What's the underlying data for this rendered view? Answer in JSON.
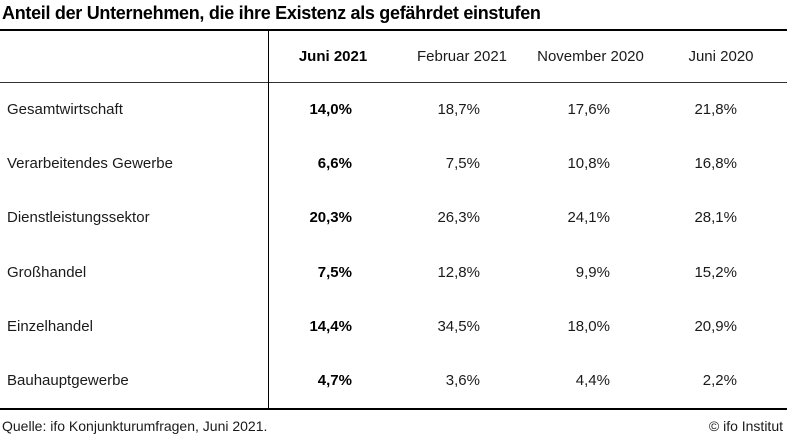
{
  "title": "Anteil der Unternehmen, die ihre Existenz als gefährdet einstufen",
  "table": {
    "columns": [
      "Juni 2021",
      "Februar 2021",
      "November 2020",
      "Juni 2020"
    ],
    "highlighted_column": "Juni 2021",
    "rows": [
      {
        "label": "Gesamtwirtschaft",
        "values": [
          "14,0%",
          "18,7%",
          "17,6%",
          "21,8%"
        ]
      },
      {
        "label": "Verarbeitendes Gewerbe",
        "values": [
          "6,6%",
          "7,5%",
          "10,8%",
          "16,8%"
        ]
      },
      {
        "label": "Dienstleistungssektor",
        "values": [
          "20,3%",
          "26,3%",
          "24,1%",
          "28,1%"
        ]
      },
      {
        "label": "Großhandel",
        "values": [
          "7,5%",
          "12,8%",
          "9,9%",
          "15,2%"
        ]
      },
      {
        "label": "Einzelhandel",
        "values": [
          "14,4%",
          "34,5%",
          "18,0%",
          "20,9%"
        ]
      },
      {
        "label": "Bauhauptgewerbe",
        "values": [
          "4,7%",
          "3,6%",
          "4,4%",
          "2,2%"
        ]
      }
    ]
  },
  "footer": {
    "source": "Quelle: ifo Konjunkturumfragen, Juni 2021.",
    "copyright": "© ifo Institut"
  },
  "colors": {
    "text": "#1a1a1a",
    "rule": "#000000",
    "background": "#ffffff"
  },
  "chart_data": {
    "type": "table",
    "title": "Anteil der Unternehmen, die ihre Existenz als gefährdet einstufen",
    "categories": [
      "Gesamtwirtschaft",
      "Verarbeitendes Gewerbe",
      "Dienstleistungssektor",
      "Großhandel",
      "Einzelhandel",
      "Bauhauptgewerbe"
    ],
    "series": [
      {
        "name": "Juni 2021",
        "values": [
          14.0,
          6.6,
          20.3,
          7.5,
          14.4,
          4.7
        ]
      },
      {
        "name": "Februar 2021",
        "values": [
          18.7,
          7.5,
          26.3,
          12.8,
          34.5,
          3.6
        ]
      },
      {
        "name": "November 2020",
        "values": [
          17.6,
          10.8,
          24.1,
          9.9,
          18.0,
          4.4
        ]
      },
      {
        "name": "Juni 2020",
        "values": [
          21.8,
          16.8,
          28.1,
          15.2,
          20.9,
          2.2
        ]
      }
    ],
    "unit": "%",
    "source": "Quelle: ifo Konjunkturumfragen, Juni 2021."
  }
}
